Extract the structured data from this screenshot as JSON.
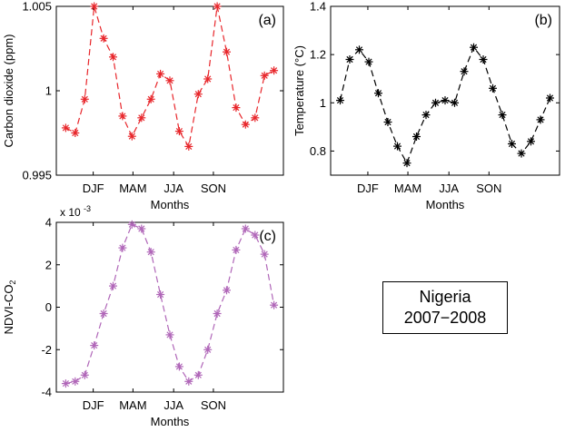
{
  "chart_data": [
    {
      "panel_label": "(a)",
      "type": "line",
      "color": "#e8262b",
      "marker": "asterisk",
      "line_style": "dashed",
      "title": "",
      "xlabel": "Months",
      "ylabel": "Carbon dioxide (ppm)",
      "xtick_labels": [
        "DJF",
        "MAM",
        "JJA",
        "SON"
      ],
      "ytick_labels": [
        "0.995",
        "1",
        "1.005"
      ],
      "yticks": [
        0.995,
        1.0,
        1.005
      ],
      "xlim": [
        0,
        24
      ],
      "ylim": [
        0.995,
        1.005
      ],
      "x": [
        1,
        2,
        3,
        4,
        5,
        6,
        7,
        8,
        9,
        10,
        11,
        12,
        13,
        14,
        15,
        16,
        17,
        18,
        19,
        20,
        21,
        22,
        23
      ],
      "values": [
        0.9978,
        0.9975,
        0.9995,
        1.005,
        1.0031,
        1.002,
        0.9985,
        0.9973,
        0.9984,
        0.9995,
        1.001,
        1.0006,
        0.9976,
        0.9967,
        0.9998,
        1.0007,
        1.005,
        1.0023,
        0.999,
        0.998,
        0.9984,
        1.0009,
        1.0012
      ]
    },
    {
      "panel_label": "(b)",
      "type": "line",
      "color": "#000000",
      "marker": "asterisk",
      "line_style": "dashed",
      "title": "",
      "xlabel": "Months",
      "ylabel": "Temperature (°C)",
      "xtick_labels": [
        "DJF",
        "MAM",
        "JJA",
        "SON"
      ],
      "ytick_labels": [
        "0.8",
        "1",
        "1.2",
        "1.4"
      ],
      "yticks": [
        0.8,
        1.0,
        1.2,
        1.4
      ],
      "xlim": [
        0,
        24
      ],
      "ylim": [
        0.7,
        1.4
      ],
      "x": [
        1,
        2,
        3,
        4,
        5,
        6,
        7,
        8,
        9,
        10,
        11,
        12,
        13,
        14,
        15,
        16,
        17,
        18,
        19,
        20,
        21,
        22,
        23
      ],
      "values": [
        1.01,
        1.18,
        1.22,
        1.17,
        1.04,
        0.92,
        0.82,
        0.75,
        0.86,
        0.95,
        1.0,
        1.01,
        1.0,
        1.13,
        1.23,
        1.18,
        1.06,
        0.95,
        0.83,
        0.79,
        0.84,
        0.93,
        1.02
      ]
    },
    {
      "panel_label": "(c)",
      "type": "line",
      "color": "#b066b8",
      "marker": "asterisk",
      "line_style": "dashed",
      "title": "",
      "xlabel": "Months",
      "ylabel_main": "NDVI-CO",
      "ylabel_sub": "2",
      "exponent_label": "x 10",
      "exponent_power": "-3",
      "xtick_labels": [
        "DJF",
        "MAM",
        "JJA",
        "SON"
      ],
      "ytick_labels": [
        "-4",
        "-2",
        "0",
        "2",
        "4"
      ],
      "yticks": [
        -4,
        -2,
        0,
        2,
        4
      ],
      "xlim": [
        0,
        24
      ],
      "ylim": [
        -4,
        4
      ],
      "x": [
        1,
        2,
        3,
        4,
        5,
        6,
        7,
        8,
        9,
        10,
        11,
        12,
        13,
        14,
        15,
        16,
        17,
        18,
        19,
        20,
        21,
        22,
        23
      ],
      "values": [
        -3.6,
        -3.5,
        -3.2,
        -1.8,
        -0.3,
        1.0,
        2.8,
        3.9,
        3.7,
        2.6,
        0.6,
        -1.3,
        -2.8,
        -3.5,
        -3.2,
        -2.0,
        -0.3,
        0.8,
        2.7,
        3.7,
        3.4,
        2.5,
        0.1
      ]
    }
  ],
  "legend_box": {
    "line1": "Nigeria",
    "line2": "2007−2008"
  }
}
